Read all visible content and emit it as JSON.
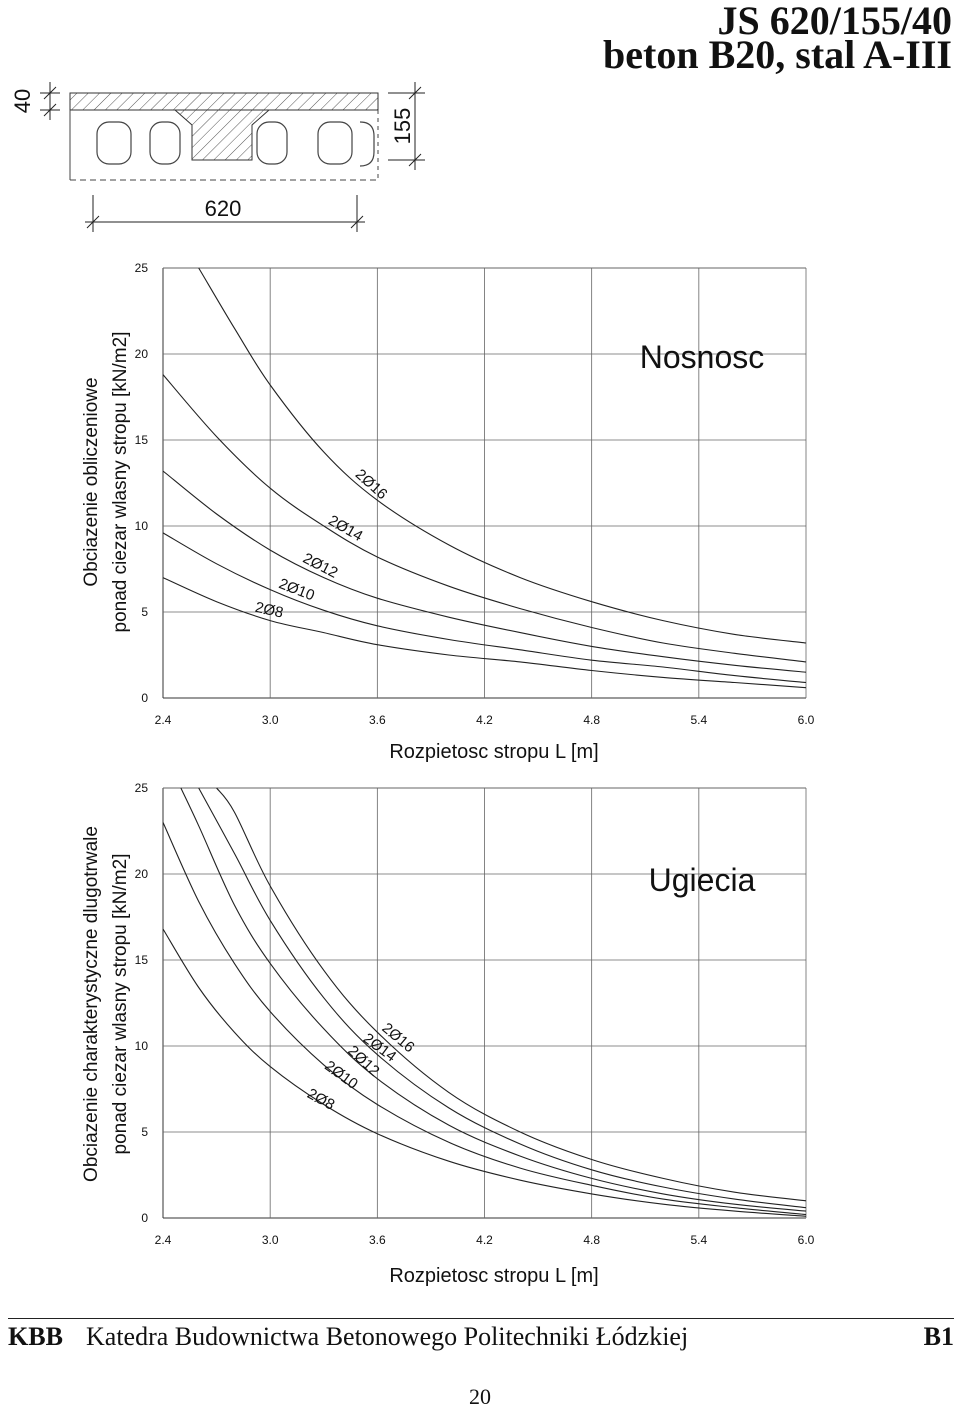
{
  "header": {
    "title_line1": "JS 620/155/40",
    "title_line2": "beton B20, stal A-III"
  },
  "section_drawing": {
    "dim_thickness": "40",
    "dim_height": "155",
    "dim_width": "620"
  },
  "chart_data": [
    {
      "type": "line",
      "title": "Nosnosc",
      "xlabel": "Rozpietosc stropu L [m]",
      "ylabel_line1": "Obciazenie obliczeniowe",
      "ylabel_line2": "ponad ciezar wlasny stropu [kN/m2]",
      "xlim": [
        2.4,
        6.0
      ],
      "ylim": [
        0,
        25
      ],
      "x_ticks": [
        "2.4",
        "3.0",
        "3.6",
        "4.2",
        "4.8",
        "5.4",
        "6.0"
      ],
      "y_ticks": [
        "0",
        "5",
        "10",
        "15",
        "20",
        "25"
      ],
      "series": [
        {
          "name": "2Ø8",
          "x": [
            2.4,
            2.7,
            3.0,
            3.3,
            3.6,
            4.0,
            4.4,
            4.8,
            5.2,
            5.6,
            6.0
          ],
          "y": [
            7.0,
            5.6,
            4.5,
            3.8,
            3.1,
            2.5,
            2.1,
            1.6,
            1.2,
            0.9,
            0.6
          ]
        },
        {
          "name": "2Ø10",
          "x": [
            2.4,
            2.7,
            3.0,
            3.3,
            3.6,
            4.0,
            4.4,
            4.8,
            5.2,
            5.6,
            6.0
          ],
          "y": [
            9.6,
            7.8,
            6.3,
            5.1,
            4.2,
            3.4,
            2.8,
            2.2,
            1.8,
            1.3,
            0.9
          ]
        },
        {
          "name": "2Ø12",
          "x": [
            2.4,
            2.7,
            3.0,
            3.3,
            3.6,
            4.0,
            4.4,
            4.8,
            5.2,
            5.6,
            6.0
          ],
          "y": [
            13.2,
            10.7,
            8.6,
            7.0,
            5.8,
            4.7,
            3.8,
            3.0,
            2.4,
            1.9,
            1.5
          ]
        },
        {
          "name": "2Ø14",
          "x": [
            2.4,
            2.7,
            3.0,
            3.3,
            3.6,
            4.0,
            4.4,
            4.8,
            5.2,
            5.6,
            6.0
          ],
          "y": [
            18.8,
            15.2,
            12.2,
            10.0,
            8.2,
            6.5,
            5.2,
            4.1,
            3.2,
            2.6,
            2.1
          ]
        },
        {
          "name": "2Ø16",
          "x": [
            2.6,
            2.8,
            3.0,
            3.3,
            3.6,
            4.0,
            4.4,
            4.8,
            5.2,
            5.6,
            6.0
          ],
          "y": [
            25.0,
            21.5,
            18.2,
            14.3,
            11.5,
            8.9,
            7.0,
            5.6,
            4.5,
            3.7,
            3.2
          ]
        }
      ]
    },
    {
      "type": "line",
      "title": "Ugiecia",
      "xlabel": "Rozpietosc stropu L [m]",
      "ylabel_line1": "Obciazenie charakterystyczne dlugotrwale",
      "ylabel_line2": "ponad ciezar wlasny stropu [kN/m2]",
      "xlim": [
        2.4,
        6.0
      ],
      "ylim": [
        0,
        25
      ],
      "x_ticks": [
        "2.4",
        "3.0",
        "3.6",
        "4.2",
        "4.8",
        "5.4",
        "6.0"
      ],
      "y_ticks": [
        "0",
        "5",
        "10",
        "15",
        "20",
        "25"
      ],
      "series": [
        {
          "name": "2Ø8",
          "x": [
            2.4,
            2.6,
            2.8,
            3.0,
            3.3,
            3.6,
            4.0,
            4.4,
            4.8,
            5.2,
            5.6,
            6.0
          ],
          "y": [
            16.8,
            13.4,
            10.8,
            8.8,
            6.6,
            4.9,
            3.3,
            2.2,
            1.4,
            0.8,
            0.4,
            0.1
          ]
        },
        {
          "name": "2Ø10",
          "x": [
            2.4,
            2.6,
            2.8,
            3.0,
            3.3,
            3.6,
            4.0,
            4.4,
            4.8,
            5.2,
            5.6,
            6.0
          ],
          "y": [
            23.0,
            18.4,
            14.8,
            12.0,
            8.9,
            6.6,
            4.4,
            2.9,
            1.9,
            1.1,
            0.6,
            0.2
          ]
        },
        {
          "name": "2Ø12",
          "x": [
            2.5,
            2.6,
            2.8,
            3.0,
            3.3,
            3.6,
            4.0,
            4.4,
            4.8,
            5.2,
            5.6,
            6.0
          ],
          "y": [
            25.0,
            22.8,
            18.2,
            14.8,
            11.0,
            8.1,
            5.4,
            3.6,
            2.3,
            1.4,
            0.8,
            0.4
          ]
        },
        {
          "name": "2Ø14",
          "x": [
            2.6,
            2.8,
            3.0,
            3.3,
            3.6,
            4.0,
            4.4,
            4.8,
            5.2,
            5.6,
            6.0
          ],
          "y": [
            25.0,
            21.2,
            17.3,
            12.8,
            9.5,
            6.4,
            4.3,
            2.8,
            1.8,
            1.1,
            0.6
          ]
        },
        {
          "name": "2Ø16",
          "x": [
            2.7,
            2.8,
            3.0,
            3.3,
            3.6,
            4.0,
            4.4,
            4.8,
            5.2,
            5.6,
            6.0
          ],
          "y": [
            25.0,
            23.6,
            19.3,
            14.4,
            10.8,
            7.3,
            5.0,
            3.4,
            2.3,
            1.5,
            1.0
          ]
        }
      ]
    }
  ],
  "footer": {
    "org": "KBB",
    "department": "Katedra Budownictwa Betonowego Politechniki Łódzkiej",
    "code": "B1",
    "page_number": "20"
  }
}
